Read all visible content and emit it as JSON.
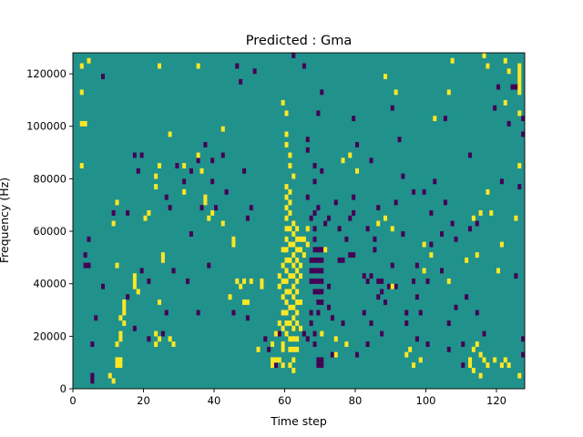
{
  "chart_data": {
    "type": "heatmap",
    "title": "Predicted : Gma",
    "xlabel": "Time step",
    "ylabel": "Frequency (Hz)",
    "xlim": [
      0,
      128
    ],
    "ylim": [
      0,
      128000
    ],
    "x_ticks": [
      0,
      20,
      40,
      60,
      80,
      100,
      120
    ],
    "y_ticks": [
      0,
      20000,
      40000,
      60000,
      80000,
      100000,
      120000
    ],
    "x_tick_labels": [
      "0",
      "20",
      "40",
      "60",
      "80",
      "100",
      "120"
    ],
    "y_tick_labels": [
      "0",
      "20000",
      "40000",
      "60000",
      "80000",
      "100000",
      "120000"
    ],
    "grid": false,
    "colormap": "viridis",
    "values_legend": {
      "low": -1,
      "background": 0,
      "high": 1
    },
    "colors": {
      "background": "#21918c",
      "high": "#fde725",
      "low": "#440154"
    },
    "high_cells": [
      [
        2,
        122000
      ],
      [
        4,
        124000
      ],
      [
        2,
        112000
      ],
      [
        2,
        100000
      ],
      [
        3,
        100000
      ],
      [
        2,
        84000
      ],
      [
        12,
        70000
      ],
      [
        11,
        62000
      ],
      [
        12,
        46000
      ],
      [
        17,
        42000
      ],
      [
        17,
        40000
      ],
      [
        17,
        38000
      ],
      [
        18,
        36000
      ],
      [
        14,
        32000
      ],
      [
        14,
        30000
      ],
      [
        14,
        28000
      ],
      [
        13,
        26000
      ],
      [
        14,
        24000
      ],
      [
        13,
        20000
      ],
      [
        13,
        18000
      ],
      [
        12,
        16000
      ],
      [
        12,
        10000
      ],
      [
        12,
        8000
      ],
      [
        13,
        10000
      ],
      [
        13,
        8000
      ],
      [
        10,
        4000
      ],
      [
        11,
        2000
      ],
      [
        24,
        122000
      ],
      [
        23,
        80000
      ],
      [
        24,
        84000
      ],
      [
        23,
        76000
      ],
      [
        20,
        64000
      ],
      [
        21,
        66000
      ],
      [
        25,
        50000
      ],
      [
        25,
        48000
      ],
      [
        24,
        32000
      ],
      [
        23,
        20000
      ],
      [
        24,
        18000
      ],
      [
        23,
        16000
      ],
      [
        27,
        18000
      ],
      [
        28,
        16000
      ],
      [
        31,
        84000
      ],
      [
        31,
        74000
      ],
      [
        35,
        122000
      ],
      [
        37,
        72000
      ],
      [
        37,
        70000
      ],
      [
        38,
        64000
      ],
      [
        42,
        62000
      ],
      [
        45,
        56000
      ],
      [
        45,
        54000
      ],
      [
        44,
        34000
      ],
      [
        46,
        40000
      ],
      [
        47,
        38000
      ],
      [
        48,
        40000
      ],
      [
        48,
        32000
      ],
      [
        49,
        32000
      ],
      [
        50,
        40000
      ],
      [
        53,
        40000
      ],
      [
        53,
        38000
      ],
      [
        52,
        14000
      ],
      [
        27,
        96000
      ],
      [
        42,
        98000
      ],
      [
        35,
        88000
      ],
      [
        36,
        82000
      ],
      [
        39,
        66000
      ],
      [
        60,
        96000
      ],
      [
        60,
        92000
      ],
      [
        61,
        84000
      ],
      [
        61,
        88000
      ],
      [
        62,
        80000
      ],
      [
        60,
        76000
      ],
      [
        60,
        72000
      ],
      [
        60,
        68000
      ],
      [
        60,
        64000
      ],
      [
        60,
        60000
      ],
      [
        60,
        56000
      ],
      [
        60,
        52000
      ],
      [
        60,
        48000
      ],
      [
        60,
        44000
      ],
      [
        60,
        40000
      ],
      [
        60,
        36000
      ],
      [
        60,
        32000
      ],
      [
        60,
        28000
      ],
      [
        60,
        24000
      ],
      [
        60,
        20000
      ],
      [
        61,
        74000
      ],
      [
        61,
        70000
      ],
      [
        61,
        66000
      ],
      [
        61,
        60000
      ],
      [
        61,
        54000
      ],
      [
        61,
        48000
      ],
      [
        61,
        42000
      ],
      [
        61,
        36000
      ],
      [
        61,
        30000
      ],
      [
        61,
        24000
      ],
      [
        61,
        18000
      ],
      [
        61,
        14000
      ],
      [
        62,
        62000
      ],
      [
        62,
        58000
      ],
      [
        62,
        54000
      ],
      [
        62,
        50000
      ],
      [
        62,
        46000
      ],
      [
        62,
        42000
      ],
      [
        62,
        38000
      ],
      [
        62,
        34000
      ],
      [
        62,
        30000
      ],
      [
        62,
        26000
      ],
      [
        62,
        22000
      ],
      [
        62,
        18000
      ],
      [
        62,
        14000
      ],
      [
        59,
        52000
      ],
      [
        59,
        46000
      ],
      [
        59,
        40000
      ],
      [
        59,
        34000
      ],
      [
        59,
        28000
      ],
      [
        59,
        22000
      ],
      [
        59,
        14000
      ],
      [
        58,
        42000
      ],
      [
        58,
        38000
      ],
      [
        58,
        10000
      ],
      [
        57,
        10000
      ],
      [
        56,
        10000
      ],
      [
        56,
        8000
      ],
      [
        59,
        8000
      ],
      [
        63,
        60000
      ],
      [
        63,
        56000
      ],
      [
        63,
        52000
      ],
      [
        63,
        48000
      ],
      [
        63,
        44000
      ],
      [
        63,
        40000
      ],
      [
        63,
        36000
      ],
      [
        63,
        32000
      ],
      [
        63,
        28000
      ],
      [
        63,
        24000
      ],
      [
        64,
        56000
      ],
      [
        64,
        42000
      ],
      [
        64,
        32000
      ],
      [
        64,
        22000
      ],
      [
        63,
        18000
      ],
      [
        62,
        10000
      ],
      [
        62,
        6000
      ],
      [
        61,
        8000
      ],
      [
        60,
        104000
      ],
      [
        59,
        108000
      ],
      [
        64,
        52000
      ],
      [
        56,
        16000
      ],
      [
        57,
        20000
      ],
      [
        58,
        24000
      ],
      [
        59,
        16000
      ],
      [
        63,
        14000
      ],
      [
        65,
        56000
      ],
      [
        65,
        50000
      ],
      [
        66,
        60000
      ],
      [
        66,
        54000
      ],
      [
        64,
        46000
      ],
      [
        71,
        52000
      ],
      [
        70,
        20000
      ],
      [
        74,
        18000
      ],
      [
        77,
        16000
      ],
      [
        74,
        12000
      ],
      [
        76,
        86000
      ],
      [
        78,
        88000
      ],
      [
        80,
        82000
      ],
      [
        88,
        64000
      ],
      [
        90,
        60000
      ],
      [
        90,
        38000
      ],
      [
        94,
        12000
      ],
      [
        95,
        14000
      ],
      [
        96,
        8000
      ],
      [
        98,
        10000
      ],
      [
        99,
        44000
      ],
      [
        99,
        54000
      ],
      [
        101,
        50000
      ],
      [
        106,
        40000
      ],
      [
        111,
        48000
      ],
      [
        114,
        50000
      ],
      [
        113,
        64000
      ],
      [
        115,
        66000
      ],
      [
        112,
        10000
      ],
      [
        112,
        8000
      ],
      [
        113,
        14000
      ],
      [
        114,
        16000
      ],
      [
        115,
        12000
      ],
      [
        116,
        10000
      ],
      [
        117,
        8000
      ],
      [
        113,
        6000
      ],
      [
        115,
        4000
      ],
      [
        119,
        10000
      ],
      [
        121,
        8000
      ],
      [
        122,
        10000
      ],
      [
        123,
        8000
      ],
      [
        126,
        4000
      ],
      [
        126,
        84000
      ],
      [
        126,
        112000
      ],
      [
        126,
        114000
      ],
      [
        126,
        116000
      ],
      [
        126,
        118000
      ],
      [
        126,
        120000
      ],
      [
        126,
        122000
      ],
      [
        122,
        124000
      ],
      [
        123,
        120000
      ],
      [
        122,
        108000
      ],
      [
        126,
        104000
      ],
      [
        102,
        102000
      ],
      [
        107,
        124000
      ],
      [
        106,
        112000
      ],
      [
        116,
        126000
      ],
      [
        117,
        122000
      ],
      [
        120,
        44000
      ],
      [
        121,
        54000
      ],
      [
        125,
        64000
      ],
      [
        117,
        74000
      ],
      [
        118,
        66000
      ],
      [
        88,
        118000
      ],
      [
        86,
        62000
      ],
      [
        91,
        112000
      ]
    ],
    "low_cells": [
      [
        3,
        46000
      ],
      [
        4,
        46000
      ],
      [
        4,
        56000
      ],
      [
        3,
        50000
      ],
      [
        5,
        4000
      ],
      [
        5,
        2000
      ],
      [
        8,
        118000
      ],
      [
        5,
        16000
      ],
      [
        6,
        26000
      ],
      [
        8,
        38000
      ],
      [
        11,
        66000
      ],
      [
        15,
        66000
      ],
      [
        15,
        34000
      ],
      [
        17,
        22000
      ],
      [
        21,
        40000
      ],
      [
        19,
        44000
      ],
      [
        18,
        82000
      ],
      [
        17,
        88000
      ],
      [
        19,
        88000
      ],
      [
        21,
        18000
      ],
      [
        26,
        28000
      ],
      [
        25,
        20000
      ],
      [
        26,
        72000
      ],
      [
        27,
        68000
      ],
      [
        28,
        44000
      ],
      [
        29,
        84000
      ],
      [
        31,
        78000
      ],
      [
        32,
        40000
      ],
      [
        33,
        58000
      ],
      [
        33,
        82000
      ],
      [
        35,
        28000
      ],
      [
        35,
        86000
      ],
      [
        36,
        68000
      ],
      [
        38,
        46000
      ],
      [
        37,
        92000
      ],
      [
        39,
        78000
      ],
      [
        39,
        86000
      ],
      [
        40,
        68000
      ],
      [
        42,
        88000
      ],
      [
        43,
        74000
      ],
      [
        45,
        28000
      ],
      [
        46,
        122000
      ],
      [
        47,
        116000
      ],
      [
        48,
        82000
      ],
      [
        49,
        64000
      ],
      [
        50,
        68000
      ],
      [
        51,
        120000
      ],
      [
        49,
        26000
      ],
      [
        54,
        18000
      ],
      [
        55,
        14000
      ],
      [
        57,
        8000
      ],
      [
        58,
        20000
      ],
      [
        59,
        14000
      ],
      [
        64,
        32000
      ],
      [
        65,
        20000
      ],
      [
        66,
        18000
      ],
      [
        67,
        40000
      ],
      [
        67,
        44000
      ],
      [
        67,
        48000
      ],
      [
        68,
        36000
      ],
      [
        68,
        40000
      ],
      [
        68,
        44000
      ],
      [
        68,
        48000
      ],
      [
        68,
        52000
      ],
      [
        69,
        32000
      ],
      [
        69,
        36000
      ],
      [
        69,
        40000
      ],
      [
        69,
        44000
      ],
      [
        69,
        48000
      ],
      [
        69,
        52000
      ],
      [
        69,
        28000
      ],
      [
        70,
        32000
      ],
      [
        70,
        36000
      ],
      [
        70,
        40000
      ],
      [
        70,
        44000
      ],
      [
        70,
        48000
      ],
      [
        70,
        52000
      ],
      [
        68,
        56000
      ],
      [
        67,
        28000
      ],
      [
        67,
        24000
      ],
      [
        68,
        20000
      ],
      [
        68,
        16000
      ],
      [
        69,
        10000
      ],
      [
        70,
        10000
      ],
      [
        69,
        8000
      ],
      [
        70,
        8000
      ],
      [
        67,
        64000
      ],
      [
        68,
        66000
      ],
      [
        68,
        60000
      ],
      [
        69,
        68000
      ],
      [
        66,
        72000
      ],
      [
        68,
        78000
      ],
      [
        70,
        82000
      ],
      [
        70,
        112000
      ],
      [
        69,
        104000
      ],
      [
        65,
        122000
      ],
      [
        62,
        126000
      ],
      [
        66,
        90000
      ],
      [
        66,
        94000
      ],
      [
        68,
        84000
      ],
      [
        71,
        62000
      ],
      [
        72,
        64000
      ],
      [
        72,
        38000
      ],
      [
        72,
        30000
      ],
      [
        73,
        12000
      ],
      [
        73,
        26000
      ],
      [
        74,
        70000
      ],
      [
        75,
        60000
      ],
      [
        75,
        48000
      ],
      [
        76,
        48000
      ],
      [
        76,
        24000
      ],
      [
        78,
        64000
      ],
      [
        79,
        72000
      ],
      [
        79,
        66000
      ],
      [
        80,
        92000
      ],
      [
        79,
        102000
      ],
      [
        83,
        60000
      ],
      [
        84,
        24000
      ],
      [
        83,
        16000
      ],
      [
        82,
        28000
      ],
      [
        85,
        52000
      ],
      [
        85,
        56000
      ],
      [
        86,
        68000
      ],
      [
        86,
        40000
      ],
      [
        86,
        34000
      ],
      [
        87,
        40000
      ],
      [
        87,
        36000
      ],
      [
        87,
        20000
      ],
      [
        88,
        32000
      ],
      [
        89,
        38000
      ],
      [
        90,
        106000
      ],
      [
        91,
        70000
      ],
      [
        92,
        94000
      ],
      [
        93,
        58000
      ],
      [
        93,
        80000
      ],
      [
        94,
        28000
      ],
      [
        94,
        24000
      ],
      [
        96,
        74000
      ],
      [
        97,
        46000
      ],
      [
        97,
        34000
      ],
      [
        100,
        40000
      ],
      [
        101,
        54000
      ],
      [
        101,
        66000
      ],
      [
        102,
        78000
      ],
      [
        104,
        44000
      ],
      [
        104,
        58000
      ],
      [
        105,
        70000
      ],
      [
        106,
        24000
      ],
      [
        106,
        14000
      ],
      [
        108,
        56000
      ],
      [
        108,
        30000
      ],
      [
        110,
        16000
      ],
      [
        110,
        8000
      ],
      [
        111,
        34000
      ],
      [
        112,
        60000
      ],
      [
        114,
        62000
      ],
      [
        114,
        28000
      ],
      [
        116,
        20000
      ],
      [
        117,
        122000
      ],
      [
        119,
        106000
      ],
      [
        120,
        114000
      ],
      [
        123,
        100000
      ],
      [
        125,
        114000
      ],
      [
        126,
        76000
      ],
      [
        127,
        12000
      ],
      [
        127,
        102000
      ],
      [
        125,
        42000
      ],
      [
        127,
        96000
      ],
      [
        127,
        18000
      ],
      [
        90,
        46000
      ],
      [
        91,
        38000
      ],
      [
        82,
        42000
      ],
      [
        83,
        40000
      ],
      [
        84,
        42000
      ],
      [
        78,
        50000
      ],
      [
        79,
        50000
      ],
      [
        77,
        56000
      ],
      [
        107,
        62000
      ],
      [
        80,
        12000
      ],
      [
        84,
        86000
      ],
      [
        96,
        40000
      ],
      [
        97,
        18000
      ],
      [
        98,
        28000
      ],
      [
        105,
        102000
      ],
      [
        99,
        74000
      ],
      [
        112,
        88000
      ],
      [
        121,
        78000
      ],
      [
        124,
        114000
      ],
      [
        100,
        16000
      ]
    ]
  }
}
